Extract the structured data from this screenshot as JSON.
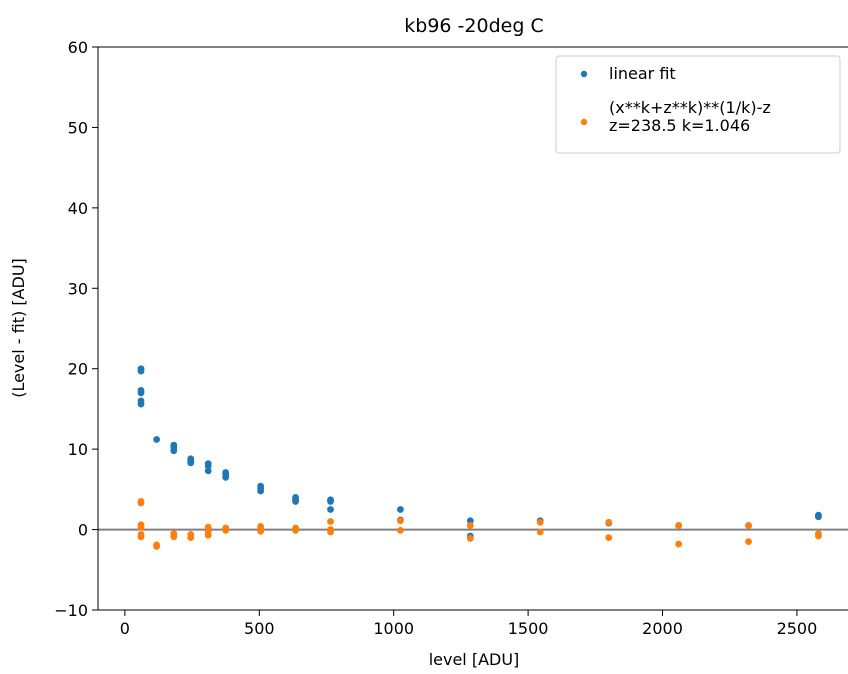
{
  "chart_data": {
    "type": "scatter",
    "title": "kb96 -20deg C",
    "xlabel": "level [ADU]",
    "ylabel": "(Level - fit) [ADU]",
    "xlim": [
      -100,
      2690
    ],
    "ylim": [
      -10,
      60
    ],
    "x_ticks": [
      0,
      500,
      1000,
      1500,
      2000,
      2500
    ],
    "y_ticks": [
      -10,
      0,
      10,
      20,
      30,
      40,
      50,
      60
    ],
    "x_tick_labels": [
      "0",
      "500",
      "1000",
      "1500",
      "2000",
      "2500"
    ],
    "y_tick_labels": [
      "−10",
      "0",
      "10",
      "20",
      "30",
      "40",
      "50",
      "60"
    ],
    "grid": false,
    "legend_position": "top-right",
    "reference_line": {
      "y": 0,
      "color": "#808080"
    },
    "series": [
      {
        "name": "linear fit",
        "color": "#1f77b4",
        "points": [
          [
            60,
            20.0
          ],
          [
            60,
            19.7
          ],
          [
            60,
            17.3
          ],
          [
            60,
            17.0
          ],
          [
            60,
            16.0
          ],
          [
            60,
            15.6
          ],
          [
            118,
            11.2
          ],
          [
            182,
            10.5
          ],
          [
            182,
            10.2
          ],
          [
            182,
            9.8
          ],
          [
            245,
            8.8
          ],
          [
            245,
            8.5
          ],
          [
            245,
            8.3
          ],
          [
            310,
            8.2
          ],
          [
            310,
            7.9
          ],
          [
            310,
            7.3
          ],
          [
            375,
            7.1
          ],
          [
            375,
            6.8
          ],
          [
            375,
            6.5
          ],
          [
            505,
            5.4
          ],
          [
            505,
            5.1
          ],
          [
            505,
            4.8
          ],
          [
            635,
            4.0
          ],
          [
            635,
            3.7
          ],
          [
            635,
            3.5
          ],
          [
            765,
            3.7
          ],
          [
            765,
            3.5
          ],
          [
            765,
            2.5
          ],
          [
            1025,
            2.5
          ],
          [
            1025,
            1.2
          ],
          [
            1285,
            1.1
          ],
          [
            1285,
            -0.8
          ],
          [
            1545,
            1.1
          ],
          [
            1800,
            0.8
          ],
          [
            2060,
            0.5
          ],
          [
            2320,
            0.5
          ],
          [
            2580,
            1.8
          ],
          [
            2580,
            1.6
          ]
        ]
      },
      {
        "name": "(x**k+z**k)**(1/k)-z\nz=238.5 k=1.046",
        "color": "#ff7f0e",
        "points": [
          [
            60,
            3.5
          ],
          [
            60,
            3.3
          ],
          [
            60,
            0.6
          ],
          [
            60,
            0.3
          ],
          [
            60,
            -0.6
          ],
          [
            60,
            -0.9
          ],
          [
            118,
            -1.9
          ],
          [
            118,
            -2.1
          ],
          [
            182,
            -0.5
          ],
          [
            182,
            -0.9
          ],
          [
            245,
            -0.6
          ],
          [
            245,
            -1.0
          ],
          [
            310,
            0.3
          ],
          [
            310,
            -0.3
          ],
          [
            310,
            -0.7
          ],
          [
            375,
            0.2
          ],
          [
            375,
            -0.1
          ],
          [
            505,
            0.4
          ],
          [
            505,
            0.1
          ],
          [
            505,
            -0.2
          ],
          [
            635,
            0.2
          ],
          [
            635,
            -0.1
          ],
          [
            765,
            1.0
          ],
          [
            765,
            0.0
          ],
          [
            765,
            -0.3
          ],
          [
            1025,
            1.1
          ],
          [
            1025,
            -0.1
          ],
          [
            1285,
            0.5
          ],
          [
            1285,
            -1.1
          ],
          [
            1545,
            0.9
          ],
          [
            1545,
            -0.3
          ],
          [
            1800,
            0.9
          ],
          [
            1800,
            -1.0
          ],
          [
            2060,
            0.5
          ],
          [
            2060,
            -1.8
          ],
          [
            2320,
            0.5
          ],
          [
            2320,
            -1.5
          ],
          [
            2580,
            -0.5
          ],
          [
            2580,
            -0.8
          ]
        ]
      }
    ]
  }
}
